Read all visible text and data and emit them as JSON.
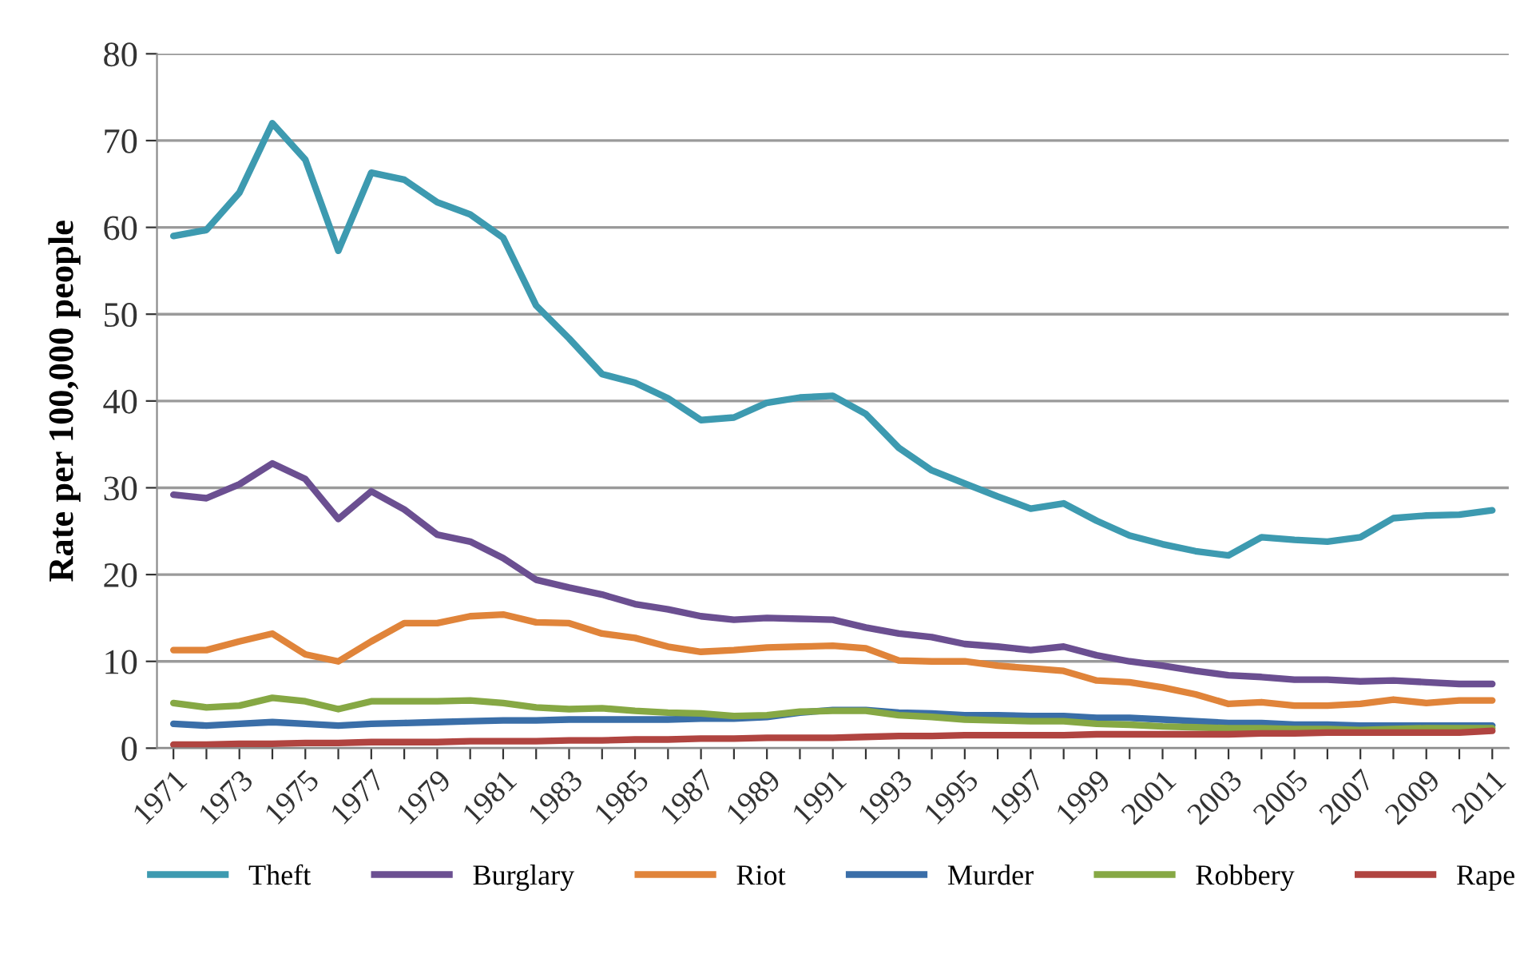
{
  "chart_data": {
    "type": "line",
    "ylabel": "Rate per 100,000 people",
    "x": [
      1971,
      1972,
      1973,
      1974,
      1975,
      1976,
      1977,
      1978,
      1979,
      1980,
      1981,
      1982,
      1983,
      1984,
      1985,
      1986,
      1987,
      1988,
      1989,
      1990,
      1991,
      1992,
      1993,
      1994,
      1995,
      1996,
      1997,
      1998,
      1999,
      2000,
      2001,
      2002,
      2003,
      2004,
      2005,
      2006,
      2007,
      2008,
      2009,
      2010,
      2011
    ],
    "xlim": [
      1970.5,
      2011.5
    ],
    "xticks": [
      1971,
      {
        "value": 1972,
        "label": null
      },
      1973,
      {
        "value": 1974,
        "label": null
      },
      1975,
      {
        "value": 1976,
        "label": null
      },
      1977,
      {
        "value": 1978,
        "label": null
      },
      1979,
      {
        "value": 1980,
        "label": null
      },
      1981,
      {
        "value": 1982,
        "label": null
      },
      1983,
      {
        "value": 1984,
        "label": null
      },
      1985,
      {
        "value": 1986,
        "label": null
      },
      1987,
      {
        "value": 1988,
        "label": null
      },
      1989,
      {
        "value": 1990,
        "label": null
      },
      1991,
      {
        "value": 1992,
        "label": null
      },
      1993,
      {
        "value": 1994,
        "label": null
      },
      1995,
      {
        "value": 1996,
        "label": null
      },
      1997,
      {
        "value": 1998,
        "label": null
      },
      1999,
      {
        "value": 2000,
        "label": null
      },
      2001,
      {
        "value": 2002,
        "label": null
      },
      2003,
      {
        "value": 2004,
        "label": null
      },
      2005,
      {
        "value": 2006,
        "label": null
      },
      2007,
      {
        "value": 2008,
        "label": null
      },
      2009,
      {
        "value": 2010,
        "label": null
      },
      2011
    ],
    "ylim": [
      0,
      80
    ],
    "yticks": [
      0,
      10,
      20,
      30,
      40,
      50,
      60,
      70,
      80
    ],
    "grid": "y",
    "legend": "bottom",
    "marker": "none",
    "line_style": "solid",
    "series": [
      {
        "name": "Theft",
        "color": "#3d9ab0",
        "values": [
          59.0,
          59.7,
          64,
          72,
          67.8,
          57.3,
          66.3,
          65.5,
          62.9,
          61.5,
          58.8,
          51,
          47.2,
          43.1,
          42.1,
          40.3,
          37.8,
          38.1,
          39.8,
          40.4,
          40.6,
          38.5,
          34.6,
          32,
          30.5,
          29,
          27.6,
          28.2,
          26.2,
          24.5,
          23.5,
          22.7,
          22.2,
          24.3,
          24,
          23.8,
          24.3,
          26.5,
          26.8,
          26.9,
          27.4
        ]
      },
      {
        "name": "Burglary",
        "color": "#6b4f91",
        "values": [
          29.2,
          28.8,
          30.4,
          32.8,
          31,
          26.4,
          29.6,
          27.5,
          24.6,
          23.8,
          21.9,
          19.4,
          18.5,
          17.7,
          16.6,
          16,
          15.2,
          14.8,
          15,
          14.9,
          14.8,
          13.9,
          13.2,
          12.8,
          12,
          11.7,
          11.3,
          11.7,
          10.7,
          10,
          9.5,
          8.9,
          8.4,
          8.2,
          7.9,
          7.9,
          7.7,
          7.8,
          7.6,
          7.4,
          7.4
        ]
      },
      {
        "name": "Riot",
        "color": "#e0843a",
        "values": [
          11.3,
          11.3,
          12.3,
          13.2,
          10.8,
          10,
          12.3,
          14.4,
          14.4,
          15.2,
          15.4,
          14.5,
          14.4,
          13.2,
          12.7,
          11.7,
          11.1,
          11.3,
          11.6,
          11.7,
          11.8,
          11.5,
          10.1,
          10,
          10,
          9.5,
          9.2,
          8.9,
          7.8,
          7.6,
          7,
          6.2,
          5.1,
          5.3,
          4.9,
          4.9,
          5.1,
          5.6,
          5.2,
          5.5,
          5.5
        ]
      },
      {
        "name": "Murder",
        "color": "#3a6ea8",
        "values": [
          2.8,
          2.6,
          2.8,
          3.0,
          2.8,
          2.6,
          2.8,
          2.9,
          3.0,
          3.1,
          3.2,
          3.2,
          3.3,
          3.3,
          3.3,
          3.3,
          3.4,
          3.4,
          3.6,
          4.1,
          4.4,
          4.4,
          4.1,
          4.0,
          3.8,
          3.8,
          3.7,
          3.7,
          3.5,
          3.5,
          3.3,
          3.1,
          2.9,
          2.9,
          2.7,
          2.7,
          2.6,
          2.6,
          2.6,
          2.6,
          2.6
        ]
      },
      {
        "name": "Robbery",
        "color": "#86a844",
        "values": [
          5.2,
          4.7,
          4.9,
          5.8,
          5.4,
          4.5,
          5.4,
          5.4,
          5.4,
          5.5,
          5.2,
          4.7,
          4.5,
          4.6,
          4.3,
          4.1,
          4.0,
          3.7,
          3.8,
          4.2,
          4.3,
          4.3,
          3.8,
          3.6,
          3.3,
          3.2,
          3.1,
          3.1,
          2.8,
          2.7,
          2.5,
          2.4,
          2.3,
          2.3,
          2.2,
          2.2,
          2.1,
          2.2,
          2.3,
          2.3,
          2.3
        ]
      },
      {
        "name": "Rape",
        "color": "#b04440",
        "values": [
          0.4,
          0.4,
          0.5,
          0.5,
          0.6,
          0.6,
          0.7,
          0.7,
          0.7,
          0.8,
          0.8,
          0.8,
          0.9,
          0.9,
          1.0,
          1.0,
          1.1,
          1.1,
          1.2,
          1.2,
          1.2,
          1.3,
          1.4,
          1.4,
          1.5,
          1.5,
          1.5,
          1.5,
          1.6,
          1.6,
          1.6,
          1.6,
          1.6,
          1.7,
          1.7,
          1.8,
          1.8,
          1.8,
          1.8,
          1.8,
          2.0
        ]
      }
    ]
  }
}
